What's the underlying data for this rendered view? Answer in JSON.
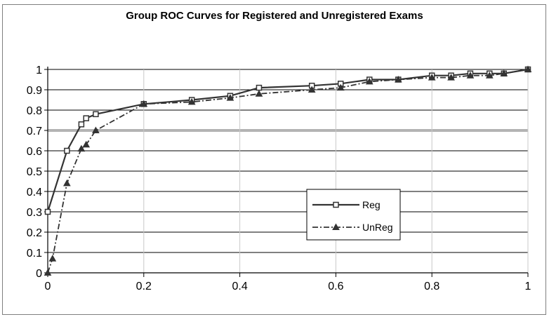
{
  "chart_data": {
    "type": "line",
    "title": "Group ROC Curves for Registered and Unregistered Exams",
    "xlabel": "",
    "ylabel": "",
    "xlim": [
      0,
      1
    ],
    "ylim": [
      0,
      1
    ],
    "x_ticks": [
      "0",
      "0.2",
      "0.4",
      "0.6",
      "0.8",
      "1"
    ],
    "y_ticks": [
      "0",
      "0.1",
      "0.2",
      "0.3",
      "0.4",
      "0.5",
      "0.6",
      "0.7",
      "0.8",
      "0.9",
      "1"
    ],
    "grid": "horizontal",
    "legend_position": "lower-right",
    "series": [
      {
        "name": "Reg",
        "line_style": "solid",
        "marker": "square",
        "color": "#333333",
        "x": [
          0.0,
          0.04,
          0.07,
          0.08,
          0.1,
          0.2,
          0.3,
          0.38,
          0.44,
          0.55,
          0.61,
          0.67,
          0.73,
          0.8,
          0.84,
          0.88,
          0.92,
          0.95,
          1.0
        ],
        "y": [
          0.3,
          0.6,
          0.73,
          0.76,
          0.78,
          0.83,
          0.85,
          0.87,
          0.91,
          0.92,
          0.93,
          0.95,
          0.95,
          0.97,
          0.97,
          0.98,
          0.98,
          0.98,
          1.0
        ]
      },
      {
        "name": "UnReg",
        "line_style": "dash-dot",
        "marker": "triangle",
        "color": "#333333",
        "x": [
          0.0,
          0.01,
          0.04,
          0.07,
          0.08,
          0.1,
          0.2,
          0.3,
          0.38,
          0.44,
          0.55,
          0.61,
          0.67,
          0.73,
          0.8,
          0.84,
          0.88,
          0.92,
          0.95,
          1.0
        ],
        "y": [
          0.0,
          0.07,
          0.44,
          0.61,
          0.63,
          0.7,
          0.83,
          0.84,
          0.86,
          0.88,
          0.9,
          0.91,
          0.94,
          0.95,
          0.96,
          0.96,
          0.97,
          0.97,
          0.98,
          1.0
        ]
      }
    ]
  }
}
